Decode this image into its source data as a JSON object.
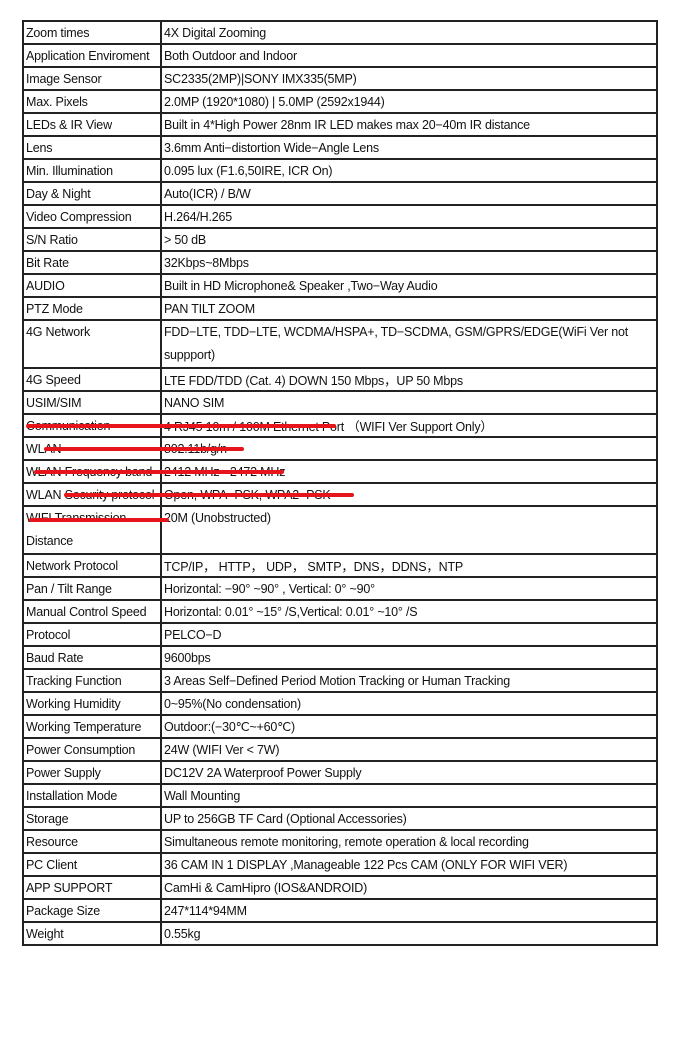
{
  "strike_color": "#e8141b",
  "rows": [
    {
      "label": "Zoom times",
      "value": "4X Digital Zooming"
    },
    {
      "label": "Application Enviroment",
      "value": "Both Outdoor and Indoor"
    },
    {
      "label": "Image Sensor",
      "value": "SC2335(2MP)|SONY IMX335(5MP)"
    },
    {
      "label": "Max. Pixels",
      "value": "2.0MP (1920*1080) | 5.0MP (2592x1944)"
    },
    {
      "label": "LEDs & IR View",
      "value": "Built in 4*High Power 28nm IR LED makes max 20−40m IR distance"
    },
    {
      "label": "Lens",
      "value": "3.6mm Anti−distortion Wide−Angle Lens"
    },
    {
      "label": "Min. Illumination",
      "value": "0.095 lux (F1.6,50IRE, ICR On)"
    },
    {
      "label": "Day & Night",
      "value": "Auto(ICR)   /   B/W"
    },
    {
      "label": "Video Compression",
      "value": "H.264/H.265"
    },
    {
      "label": "S/N Ratio",
      "value": "> 50 dB"
    },
    {
      "label": "Bit Rate",
      "value": "32Kbps~8Mbps"
    },
    {
      "label": "AUDIO",
      "value": "Built in HD Microphone& Speaker ,Two−Way Audio"
    },
    {
      "label": "PTZ Mode",
      "value": "PAN TILT ZOOM"
    },
    {
      "label": "4G Network",
      "value": "FDD−LTE, TDD−LTE, WCDMA/HSPA+, TD−SCDMA, GSM/GPRS/EDGE(WiFi Ver not suppport)"
    },
    {
      "label": "4G Speed",
      "value": "LTE FDD/TDD (Cat. 4) DOWN 150 Mbps，UP 50 Mbps"
    },
    {
      "label": "USIM/SIM",
      "value": "NANO SIM"
    },
    {
      "label": "Communication",
      "value": "4 RJ45 10m / 100M Ethernet Port （WIFI Ver Support Only）",
      "struck": true
    },
    {
      "label": "WLAN",
      "value": "802.11b/g/n",
      "struck": true
    },
    {
      "label": "WLAN Frequency band",
      "value": "2412 MHz - 2472 MHz",
      "struck": true
    },
    {
      "label": "WLAN Security protocol",
      "value": "Open, WPA−PSK, WPA2−PSK",
      "struck": true
    },
    {
      "label": "WIFI Transmission Distance",
      "value": "20M (Unobstructed)",
      "struck": true
    },
    {
      "label": "Network Protocol",
      "value": "TCP/IP， HTTP， UDP， SMTP，DNS，DDNS，NTP"
    },
    {
      "label": "Pan / Tilt Range",
      "value": "Horizontal: −90° ~90°  , Vertical: 0° ~90°"
    },
    {
      "label": "Manual Control Speed",
      "value": "Horizontal: 0.01° ~15° /S,Vertical: 0.01° ~10° /S"
    },
    {
      "label": "Protocol",
      "value": "PELCO−D"
    },
    {
      "label": "Baud Rate",
      "value": "9600bps"
    },
    {
      "label": "Tracking Function",
      "value": "3 Areas Self−Defined Period Motion Tracking or Human Tracking"
    },
    {
      "label": "Working Humidity",
      "value": "0~95%(No condensation)"
    },
    {
      "label": "Working Temperature",
      "value": "Outdoor:(−30℃~+60℃)"
    },
    {
      "label": "Power Consumption",
      "value": "24W (WIFI Ver < 7W)"
    },
    {
      "label": "Power Supply",
      "value": "DC12V 2A   Waterproof Power Supply"
    },
    {
      "label": "Installation Mode",
      "value": "Wall Mounting"
    },
    {
      "label": "Storage",
      "value": "UP to 256GB TF Card (Optional Accessories)"
    },
    {
      "label": "Resource",
      "value": "Simultaneous remote monitoring, remote operation & local recording"
    },
    {
      "label": "PC Client",
      "value": "36 CAM IN 1 DISPLAY ,Manageable 122 Pcs CAM (ONLY FOR WIFI VER)"
    },
    {
      "label": "APP SUPPORT",
      "value": "CamHi & CamHipro    (IOS&ANDROID)"
    },
    {
      "label": "Package Size",
      "value": "247*114*94MM"
    },
    {
      "label": "Weight",
      "value": "0.55kg"
    }
  ]
}
